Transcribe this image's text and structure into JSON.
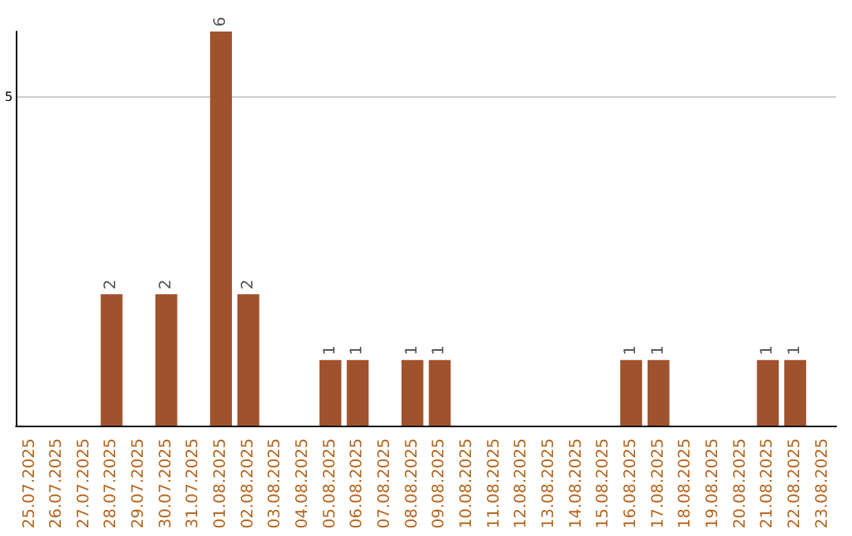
{
  "chart_data": {
    "type": "bar",
    "categories": [
      "25.07.2025",
      "26.07.2025",
      "27.07.2025",
      "28.07.2025",
      "29.07.2025",
      "30.07.2025",
      "31.07.2025",
      "01.08.2025",
      "02.08.2025",
      "03.08.2025",
      "04.08.2025",
      "05.08.2025",
      "06.08.2025",
      "07.08.2025",
      "08.08.2025",
      "09.08.2025",
      "10.08.2025",
      "11.08.2025",
      "12.08.2025",
      "13.08.2025",
      "14.08.2025",
      "15.08.2025",
      "16.08.2025",
      "17.08.2025",
      "18.08.2025",
      "19.08.2025",
      "20.08.2025",
      "21.08.2025",
      "22.08.2025",
      "23.08.2025"
    ],
    "values": [
      null,
      null,
      null,
      2,
      null,
      2,
      null,
      6,
      2,
      null,
      null,
      1,
      1,
      null,
      1,
      1,
      null,
      null,
      null,
      null,
      null,
      null,
      1,
      1,
      null,
      null,
      null,
      1,
      1,
      null
    ],
    "color": "#a0522d",
    "ylim": [
      0,
      6
    ],
    "yticks": [
      5
    ],
    "grid": "y",
    "data_labels": true
  }
}
